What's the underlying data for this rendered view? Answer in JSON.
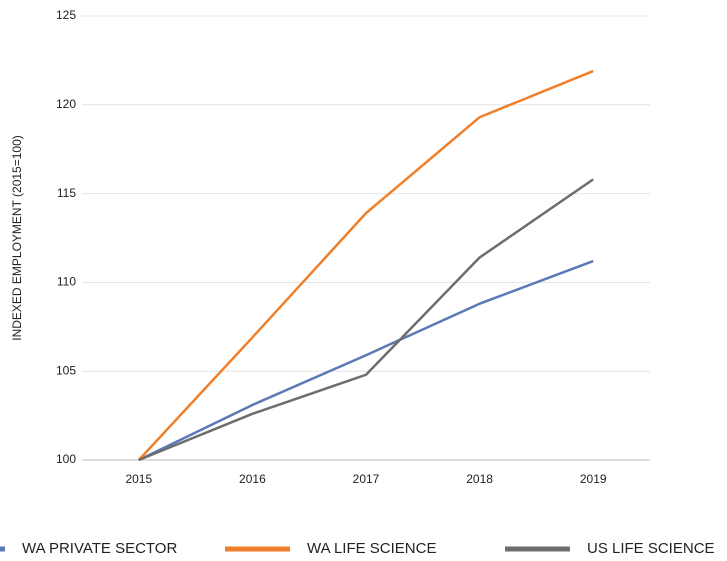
{
  "chart_data": {
    "type": "line",
    "y_label": "INDEXED EMPLOYMENT (2015=100)",
    "categories": [
      "2015",
      "2016",
      "2017",
      "2018",
      "2019"
    ],
    "series": [
      {
        "name": "WA PRIVATE SECTOR",
        "color": "#5b79b5",
        "values": [
          100,
          103.1,
          105.9,
          108.8,
          111.2
        ]
      },
      {
        "name": "WA LIFE SCIENCE",
        "color": "#f07f2a",
        "values": [
          100,
          106.9,
          113.9,
          119.3,
          121.9
        ]
      },
      {
        "name": "US LIFE SCIENCE",
        "color": "#6d6d6d",
        "values": [
          100,
          102.6,
          104.8,
          111.4,
          115.8
        ]
      }
    ],
    "ylim": [
      100,
      125
    ],
    "yticks": [
      100,
      105,
      110,
      115,
      120,
      125
    ],
    "grid": true,
    "legend": "bottom"
  }
}
